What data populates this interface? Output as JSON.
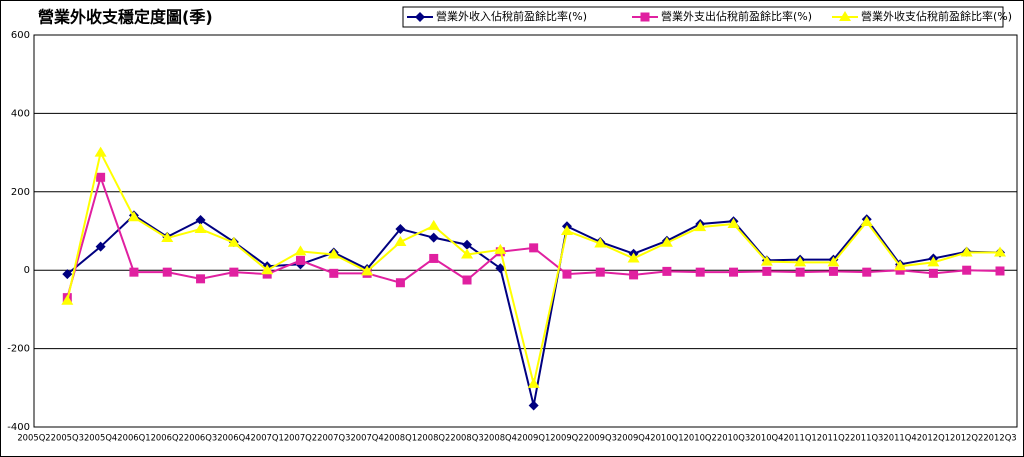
{
  "chart_data": {
    "type": "line",
    "title": "營業外收支穩定度圖(季)",
    "categories": [
      "2005Q2",
      "2005Q3",
      "2005Q4",
      "2006Q1",
      "2006Q2",
      "2006Q3",
      "2006Q4",
      "2007Q1",
      "2007Q2",
      "2007Q3",
      "2007Q4",
      "2008Q1",
      "2008Q2",
      "2008Q3",
      "2008Q4",
      "2009Q1",
      "2009Q2",
      "2009Q3",
      "2009Q4",
      "2010Q1",
      "2010Q2",
      "2010Q3",
      "2010Q4",
      "2011Q1",
      "2011Q2",
      "2011Q3",
      "2011Q4",
      "2012Q1",
      "2012Q2",
      "2012Q3"
    ],
    "series": [
      {
        "name": "營業外收入佔稅前盈餘比率(%)",
        "color": "#000080",
        "marker": "diamond",
        "values": [
          null,
          -10,
          60,
          140,
          85,
          128,
          72,
          10,
          15,
          45,
          3,
          105,
          83,
          65,
          5,
          -345,
          112,
          72,
          42,
          75,
          118,
          125,
          25,
          27,
          27,
          130,
          15,
          30,
          47,
          45
        ]
      },
      {
        "name": "營業外支出佔稅前盈餘比率(%)",
        "color": "#e020a0",
        "marker": "square",
        "values": [
          null,
          -70,
          237,
          -5,
          -5,
          -22,
          -5,
          -10,
          25,
          -8,
          -8,
          -32,
          30,
          -25,
          47,
          57,
          -10,
          -5,
          -12,
          -3,
          -5,
          -5,
          -3,
          -5,
          -3,
          -5,
          0,
          -8,
          0,
          -2
        ]
      },
      {
        "name": "營業外收支佔稅前盈餘比率(%)",
        "color": "#ffff00",
        "marker": "triangle",
        "values": [
          null,
          -78,
          300,
          135,
          82,
          105,
          70,
          0,
          48,
          40,
          -3,
          72,
          113,
          40,
          52,
          -290,
          100,
          68,
          30,
          70,
          110,
          118,
          22,
          20,
          20,
          123,
          10,
          20,
          45,
          45
        ]
      }
    ],
    "ylim": [
      -400,
      600
    ],
    "yticks": [
      -400,
      -200,
      0,
      200,
      400,
      600
    ],
    "grid": true,
    "legend": "top-right"
  }
}
